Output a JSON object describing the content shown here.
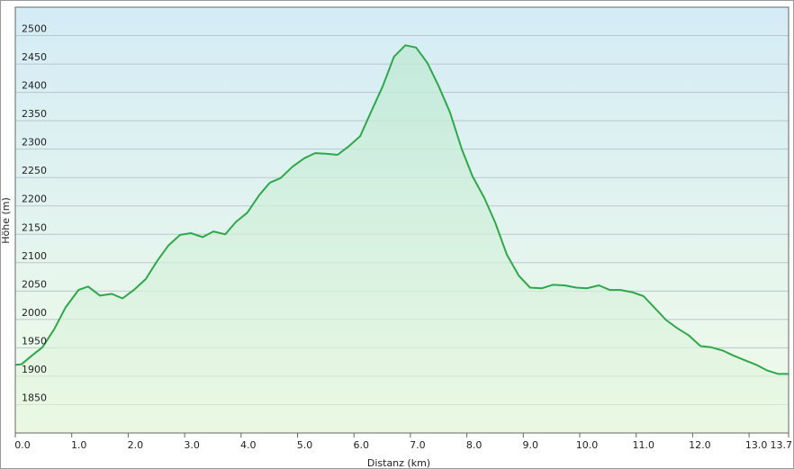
{
  "chart_data": {
    "type": "area",
    "x_label": "Distanz  (km)",
    "y_label": "Höhe (m)",
    "x": [
      0,
      0.11,
      0.29,
      0.48,
      0.69,
      0.89,
      1.12,
      1.29,
      1.5,
      1.71,
      1.9,
      2.1,
      2.31,
      2.52,
      2.71,
      2.92,
      3.11,
      3.32,
      3.51,
      3.72,
      3.91,
      4.11,
      4.32,
      4.51,
      4.7,
      4.91,
      5.12,
      5.31,
      5.5,
      5.71,
      5.92,
      6.11,
      6.3,
      6.51,
      6.71,
      6.91,
      7.1,
      7.3,
      7.5,
      7.7,
      7.91,
      8.1,
      8.31,
      8.5,
      8.71,
      8.92,
      9.12,
      9.33,
      9.52,
      9.73,
      9.94,
      10.13,
      10.34,
      10.53,
      10.72,
      10.93,
      11.13,
      11.32,
      11.53,
      11.72,
      11.93,
      12.14,
      12.33,
      12.54,
      12.73,
      12.93,
      13.13,
      13.32,
      13.52,
      13.7
    ],
    "values": [
      1920,
      1921,
      1936,
      1951,
      1983,
      2021,
      2052,
      2058,
      2042,
      2045,
      2037,
      2052,
      2071,
      2104,
      2130,
      2149,
      2152,
      2145,
      2155,
      2150,
      2172,
      2188,
      2219,
      2241,
      2249,
      2269,
      2284,
      2293,
      2292,
      2290,
      2306,
      2323,
      2365,
      2411,
      2463,
      2483,
      2479,
      2452,
      2411,
      2365,
      2300,
      2252,
      2214,
      2171,
      2114,
      2077,
      2056,
      2055,
      2061,
      2060,
      2056,
      2055,
      2060,
      2052,
      2052,
      2048,
      2041,
      2021,
      1999,
      1985,
      1972,
      1953,
      1951,
      1945,
      1936,
      1928,
      1920,
      1910,
      1904,
      1904
    ],
    "color": "#2ea84a",
    "xlim": [
      0,
      13.7
    ],
    "ylim": [
      1800,
      2550
    ],
    "xticks": [
      {
        "value": 0,
        "label": "0.0"
      },
      {
        "value": 1,
        "label": "1.0"
      },
      {
        "value": 2,
        "label": "2.0"
      },
      {
        "value": 3,
        "label": "3.0"
      },
      {
        "value": 4,
        "label": "4.0"
      },
      {
        "value": 5,
        "label": "5.0"
      },
      {
        "value": 6,
        "label": "6.0"
      },
      {
        "value": 7,
        "label": "7.0"
      },
      {
        "value": 8,
        "label": "8.0"
      },
      {
        "value": 9,
        "label": "9.0"
      },
      {
        "value": 10,
        "label": "10.0"
      },
      {
        "value": 11,
        "label": "11.0"
      },
      {
        "value": 12,
        "label": "12.0"
      },
      {
        "value": 13,
        "label": "13.0"
      },
      13.7
    ],
    "yticks": [
      1850,
      1900,
      1950,
      2000,
      2050,
      2100,
      2150,
      2200,
      2250,
      2300,
      2350,
      2400,
      2450,
      2500
    ],
    "grid": true
  }
}
